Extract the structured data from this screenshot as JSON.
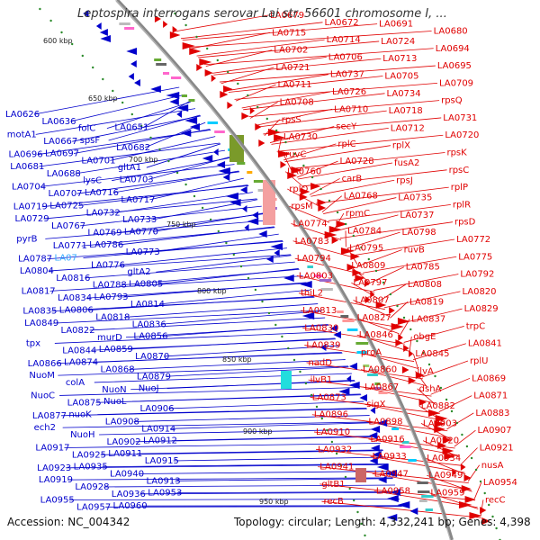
{
  "title": "Leptospira interrogans serovar Lai str. 56601 chromosome I, ...",
  "footer": {
    "accession": "Accession: NC_004342",
    "stats": "Topology: circular; Length: 4,332,241 bp; Genes: 4,398"
  },
  "colors": {
    "minus_strand": "#0000cc",
    "plus_strand": "#e00000",
    "highlight": "#33aaff",
    "backbone": "#888888",
    "tick_dots": "#2a8a2a"
  },
  "kbp_ticks": [
    "600 kbp",
    "650 kbp",
    "700 kbp",
    "750 kbp",
    "800 kbp",
    "850 kbp",
    "900 kbp",
    "950 kbp"
  ],
  "minus_labels": [
    "LA0626",
    "LA0636",
    "folC",
    "LA0651",
    "motA1",
    "LA0667",
    "spsF",
    "LA0682",
    "LA0696",
    "LA0697",
    "LA0701",
    "gltA1",
    "LA0681",
    "LA0688",
    "lysC",
    "LA0703",
    "LA0704",
    "LA0707",
    "LA0716",
    "LA0717",
    "LA0719",
    "LA0725",
    "LA0732",
    "LA0733",
    "LA0729",
    "LA0767",
    "LA0769",
    "LA0770",
    "pyrB",
    "LA0771",
    "LA0786",
    "LA0773",
    "LA0787",
    "LA07",
    "LA0776",
    "gltA2",
    "LA0804",
    "LA0816",
    "LA0788",
    "LA0805",
    "LA0817",
    "LA0834",
    "LA0793",
    "LA0814",
    "LA0835",
    "LA0806",
    "LA0818",
    "LA0836",
    "LA0849",
    "LA0822",
    "murD",
    "LA0856",
    "tpx",
    "LA0844",
    "LA0859",
    "LA0870",
    "LA0866",
    "LA0874",
    "LA0868",
    "LA0879",
    "NuoM",
    "colA",
    "NuoN",
    "NuoJ",
    "NuoC",
    "LA0875",
    "NuoL",
    "LA0906",
    "LA0877",
    "nuoK",
    "LA0908",
    "LA0914",
    "ech2",
    "NuoH",
    "LA0902",
    "LA0912",
    "LA0917",
    "LA0925",
    "LA0911",
    "LA0915",
    "LA0923",
    "LA0935",
    "LA0940",
    "LA0913",
    "LA0919",
    "LA0928",
    "LA0936",
    "LA0953",
    "LA0955",
    "LA0957",
    "LA0960"
  ],
  "plus_labels": [
    "LA0679",
    "LA0672",
    "LA0691",
    "LA0680",
    "LA0715",
    "LA0714",
    "LA0724",
    "LA0694",
    "LA0702",
    "LA0706",
    "LA0713",
    "LA0695",
    "LA0721",
    "LA0737",
    "LA0705",
    "LA0709",
    "LA0711",
    "LA0726",
    "LA0734",
    "rpsQ",
    "LA0708",
    "LA0710",
    "LA0718",
    "LA0731",
    "rpsS",
    "secY",
    "LA0712",
    "LA0720",
    "LA0730",
    "rplC",
    "rplX",
    "rpsK",
    "ruvC",
    "LA0728",
    "fusA2",
    "rpsC",
    "LA0760",
    "carB",
    "rpsJ",
    "rplP",
    "rplO",
    "LA0768",
    "LA0735",
    "rplR",
    "rpsM",
    "rpmC",
    "LA0737",
    "rpsD",
    "LA0774",
    "LA0784",
    "LA0798",
    "LA0772",
    "LA0783",
    "LA0795",
    "ruvB",
    "LA0775",
    "LA0794",
    "LA0809",
    "LA0785",
    "LA0792",
    "LA0803",
    "LA0797",
    "LA0808",
    "LA0820",
    "thiL2",
    "LA0807",
    "LA0819",
    "LA0829",
    "LA0813",
    "LA0827",
    "LA0837",
    "trpC",
    "LA0830",
    "LA0846",
    "obgE",
    "LA0841",
    "LA0839",
    "proA",
    "LA0845",
    "rplU",
    "nadD",
    "LA0860",
    "ilvA",
    "LA0869",
    "ilvB1",
    "LA0867",
    "dshA",
    "LA0871",
    "LA0873",
    "sigX",
    "LA0882",
    "LA0883",
    "LA0896",
    "LA0898",
    "LA0903",
    "LA0907",
    "LA0910",
    "LA0916",
    "LA0920",
    "LA0921",
    "LA0932",
    "LA0933",
    "LA0934",
    "nusA",
    "LA0941",
    "LA0947",
    "LA0949",
    "LA0954",
    "gltB1",
    "LA0958",
    "LA0959",
    "recC",
    "recB"
  ]
}
